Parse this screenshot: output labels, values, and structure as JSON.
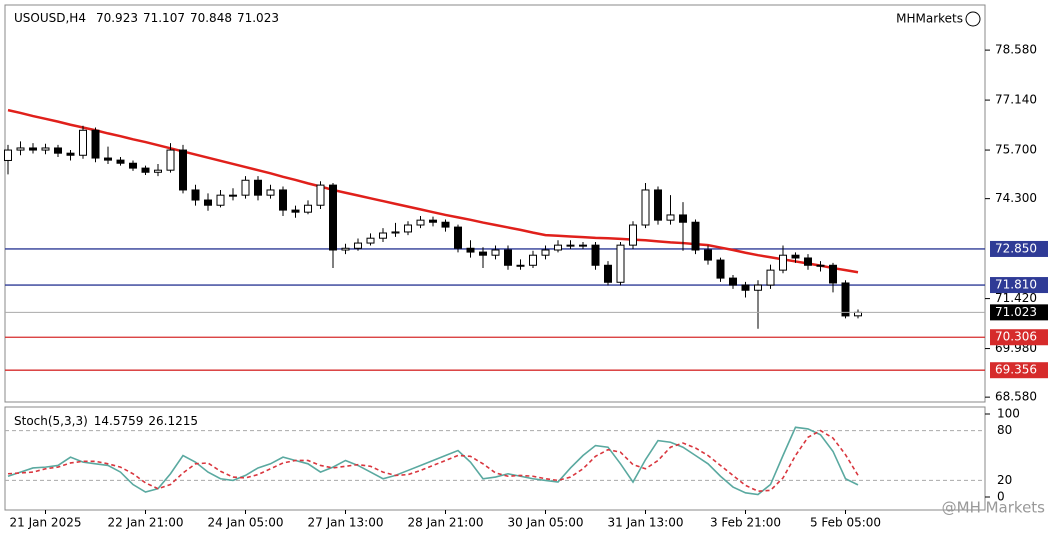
{
  "chart_data": [
    {
      "type": "candlestick",
      "title": "USOUSD,H4",
      "watermark": "MHMarkets",
      "categories": [
        null,
        null,
        null,
        "21 Jan 2025",
        null,
        null,
        null,
        null,
        null,
        null,
        null,
        "22 Jan 21:00",
        null,
        null,
        null,
        null,
        null,
        null,
        null,
        "24 Jan 05:00",
        null,
        null,
        null,
        null,
        null,
        null,
        null,
        "27 Jan 13:00",
        null,
        null,
        null,
        null,
        null,
        null,
        null,
        "28 Jan 21:00",
        null,
        null,
        null,
        null,
        null,
        null,
        null,
        "30 Jan 05:00",
        null,
        null,
        null,
        null,
        null,
        null,
        null,
        "31 Jan 13:00",
        null,
        null,
        null,
        null,
        null,
        null,
        null,
        "3 Feb 21:00",
        null,
        null,
        null,
        null,
        null,
        null,
        null,
        "5 Feb 05:00",
        null
      ],
      "open": [
        75.4,
        75.7,
        75.76,
        75.7,
        75.76,
        75.61,
        75.55,
        76.27,
        75.47,
        75.41,
        75.32,
        75.18,
        75.06,
        75.12,
        75.7,
        74.55,
        74.26,
        74.11,
        74.4,
        74.4,
        74.83,
        74.4,
        74.55,
        73.97,
        73.91,
        74.11,
        74.69,
        72.82,
        72.87,
        73.02,
        73.16,
        73.31,
        73.34,
        73.54,
        73.68,
        73.62,
        73.48,
        72.87,
        72.76,
        72.67,
        72.82,
        72.38,
        72.38,
        72.67,
        72.82,
        72.96,
        72.96,
        72.96,
        72.38,
        71.89,
        72.96,
        73.54,
        74.55,
        73.68,
        73.83,
        73.62,
        72.82,
        72.53,
        72.01,
        71.81,
        71.66,
        71.81,
        72.24,
        72.67,
        72.59,
        72.38,
        72.38,
        71.87,
        70.923
      ],
      "high": [
        75.85,
        75.95,
        75.9,
        75.88,
        75.85,
        75.7,
        76.4,
        76.35,
        75.8,
        75.5,
        75.4,
        75.25,
        75.3,
        75.9,
        75.85,
        74.7,
        74.45,
        74.55,
        74.6,
        74.95,
        74.95,
        74.7,
        74.65,
        74.1,
        74.25,
        74.8,
        74.75,
        73.0,
        73.15,
        73.3,
        73.45,
        73.6,
        73.65,
        73.8,
        73.78,
        73.7,
        73.55,
        73.1,
        72.9,
        72.95,
        72.95,
        72.55,
        72.8,
        72.95,
        73.1,
        73.1,
        73.05,
        73.05,
        72.5,
        73.05,
        73.65,
        74.75,
        74.65,
        74.4,
        74.2,
        73.7,
        72.95,
        72.6,
        72.1,
        71.9,
        71.95,
        72.4,
        72.95,
        72.75,
        72.7,
        72.5,
        72.45,
        71.95,
        71.107
      ],
      "low": [
        75.0,
        75.55,
        75.6,
        75.58,
        75.5,
        75.4,
        75.45,
        75.35,
        75.3,
        75.25,
        75.1,
        74.98,
        74.95,
        75.05,
        74.45,
        74.1,
        73.95,
        74.05,
        74.25,
        74.3,
        74.25,
        74.3,
        73.8,
        73.75,
        73.85,
        74.0,
        72.3,
        72.7,
        72.8,
        72.95,
        73.05,
        73.2,
        73.25,
        73.45,
        73.5,
        73.35,
        72.75,
        72.6,
        72.3,
        72.55,
        72.25,
        72.25,
        72.3,
        72.55,
        72.75,
        72.85,
        72.85,
        72.25,
        71.8,
        71.8,
        72.85,
        73.45,
        73.55,
        73.55,
        72.8,
        72.7,
        72.4,
        71.9,
        71.7,
        71.45,
        70.55,
        71.7,
        72.15,
        72.45,
        72.25,
        72.2,
        71.6,
        70.85,
        70.848
      ],
      "close": [
        75.7,
        75.76,
        75.7,
        75.76,
        75.61,
        75.55,
        76.27,
        75.47,
        75.41,
        75.32,
        75.18,
        75.06,
        75.12,
        75.7,
        74.55,
        74.26,
        74.11,
        74.4,
        74.4,
        74.83,
        74.4,
        74.55,
        73.97,
        73.91,
        74.11,
        74.69,
        72.82,
        72.87,
        73.02,
        73.16,
        73.31,
        73.34,
        73.54,
        73.68,
        73.62,
        73.48,
        72.87,
        72.76,
        72.67,
        72.82,
        72.38,
        72.38,
        72.67,
        72.82,
        72.96,
        72.96,
        72.96,
        72.38,
        71.89,
        72.96,
        73.54,
        74.55,
        73.68,
        73.83,
        73.62,
        72.82,
        72.53,
        72.01,
        71.81,
        71.66,
        71.81,
        72.24,
        72.67,
        72.59,
        72.38,
        72.38,
        71.87,
        70.92,
        71.023
      ],
      "up_color": "#ffffff",
      "down_color": "#000000",
      "overlays": [
        {
          "color": "#e0201b",
          "values": [
            76.85,
            76.77,
            76.68,
            76.6,
            76.52,
            76.43,
            76.35,
            76.27,
            76.18,
            76.1,
            76.01,
            75.93,
            75.84,
            75.75,
            75.66,
            75.57,
            75.48,
            75.39,
            75.3,
            75.21,
            75.12,
            75.03,
            74.93,
            74.84,
            74.74,
            74.65,
            74.55,
            74.47,
            74.39,
            74.31,
            74.23,
            74.15,
            74.07,
            73.99,
            73.91,
            73.83,
            73.76,
            73.69,
            73.61,
            73.54,
            73.47,
            73.4,
            73.32,
            73.25,
            73.23,
            73.21,
            73.19,
            73.17,
            73.16,
            73.14,
            73.12,
            73.1,
            73.07,
            73.04,
            73.02,
            72.99,
            72.96,
            72.89,
            72.82,
            72.74,
            72.67,
            72.61,
            72.55,
            72.49,
            72.43,
            72.37,
            72.3,
            72.24,
            72.18
          ]
        }
      ],
      "levels": [
        {
          "value": 72.85,
          "label": "72.850",
          "color": "#2f3b96"
        },
        {
          "value": 71.81,
          "label": "71.810",
          "color": "#2f3b96"
        },
        {
          "value": 70.306,
          "label": "70.306",
          "color": "#d62b2b"
        },
        {
          "value": 69.356,
          "label": "69.356",
          "color": "#d62b2b"
        }
      ],
      "ylim": [
        68.44,
        79.88
      ],
      "yticks": [
        {
          "value": 78.58,
          "label": "78.580"
        },
        {
          "value": 77.14,
          "label": "77.140"
        },
        {
          "value": 75.7,
          "label": "75.700"
        },
        {
          "value": 74.3,
          "label": "74.300"
        },
        {
          "value": 71.42,
          "label": "71.420"
        },
        {
          "value": 69.98,
          "label": "69.980"
        },
        {
          "value": 68.58,
          "label": "68.580"
        }
      ]
    },
    {
      "type": "line",
      "title": "Stoch(5,3,3)",
      "series": [
        {
          "color": "#5aa9a0",
          "dashed": false,
          "values": [
            25,
            30,
            35,
            36,
            38,
            48,
            42,
            40,
            38,
            30,
            15,
            6,
            10,
            28,
            50,
            42,
            30,
            22,
            20,
            26,
            35,
            40,
            48,
            44,
            40,
            30,
            36,
            44,
            38,
            30,
            22,
            26,
            32,
            38,
            44,
            50,
            56,
            42,
            22,
            24,
            28,
            25,
            22,
            20,
            18,
            35,
            50,
            62,
            60,
            40,
            18,
            45,
            68,
            66,
            60,
            50,
            40,
            25,
            12,
            5,
            3,
            15,
            50,
            84,
            82,
            75,
            55,
            22,
            14.5759
          ]
        },
        {
          "color": "#d9363e",
          "dashed": true,
          "values": [
            28,
            29,
            30,
            34,
            36,
            41,
            43,
            43,
            40,
            36,
            28,
            17,
            10,
            15,
            29,
            40,
            41,
            31,
            24,
            23,
            27,
            34,
            41,
            44,
            44,
            38,
            35,
            37,
            39,
            37,
            30,
            26,
            27,
            32,
            38,
            44,
            50,
            49,
            40,
            29,
            25,
            26,
            25,
            22,
            20,
            24,
            34,
            49,
            57,
            54,
            39,
            34,
            44,
            60,
            65,
            59,
            50,
            38,
            26,
            14,
            7,
            8,
            23,
            50,
            72,
            80,
            71,
            51,
            26.1215
          ]
        }
      ],
      "ylim": [
        0,
        100
      ],
      "yticks": [
        100,
        80,
        20,
        0
      ],
      "grid": true
    }
  ],
  "footer_watermark": "@MH Markets"
}
